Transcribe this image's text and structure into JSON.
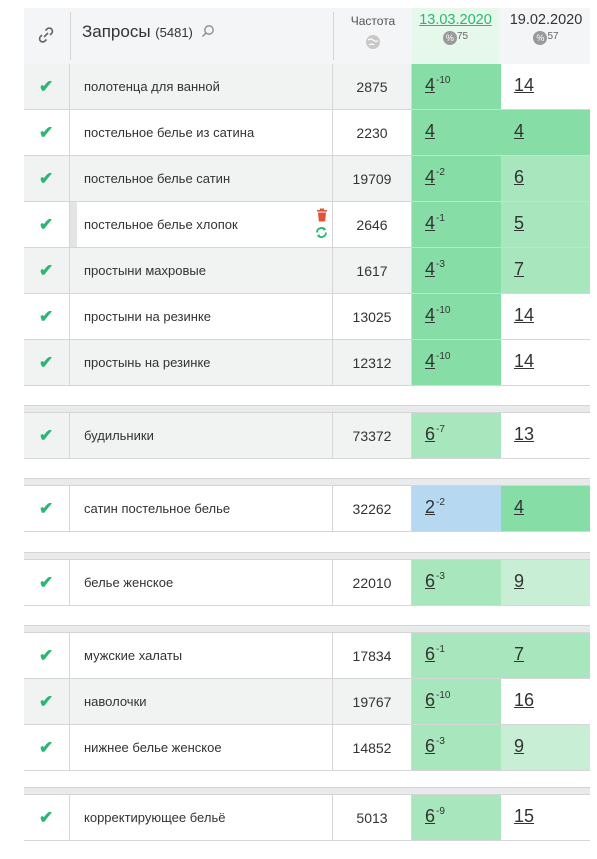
{
  "header": {
    "link_icon": "link-icon",
    "title": "Запросы",
    "count": "(5481)",
    "search_icon": "search-icon",
    "frequency_label": "Частота",
    "globe_icon": "globe-icon",
    "dates": [
      {
        "label": "13.03.2020",
        "percent": "75"
      },
      {
        "label": "19.02.2020",
        "percent": "57"
      }
    ]
  },
  "colors": {
    "check": "#2bb673",
    "pos_green": "#86dda6",
    "pos_light": "#a8e6bd",
    "pos_lighter": "#c8efd6",
    "pos_blue": "#b6d8f0",
    "delete": "#e0533b"
  },
  "groups": [
    {
      "rows": [
        {
          "query": "полотенца для ванной",
          "freq": "2875",
          "p1": "4",
          "d1": "-10",
          "p2": "14"
        },
        {
          "query": "постельное белье из сатина",
          "freq": "2230",
          "p1": "4",
          "d1": "",
          "p2": "4"
        },
        {
          "query": "постельное белье сатин",
          "freq": "19709",
          "p1": "4",
          "d1": "-2",
          "p2": "6"
        },
        {
          "query": "постельное белье хлопок",
          "freq": "2646",
          "p1": "4",
          "d1": "-1",
          "p2": "5"
        },
        {
          "query": "простыни махровые",
          "freq": "1617",
          "p1": "4",
          "d1": "-3",
          "p2": "7"
        },
        {
          "query": "простыни на резинке",
          "freq": "13025",
          "p1": "4",
          "d1": "-10",
          "p2": "14"
        },
        {
          "query": "простынь на резинке",
          "freq": "12312",
          "p1": "4",
          "d1": "-10",
          "p2": "14"
        }
      ]
    },
    {
      "rows": [
        {
          "query": "будильники",
          "freq": "73372",
          "p1": "6",
          "d1": "-7",
          "p2": "13"
        }
      ]
    },
    {
      "rows": [
        {
          "query": "сатин постельное белье",
          "freq": "32262",
          "p1": "2",
          "d1": "-2",
          "p2": "4"
        }
      ]
    },
    {
      "rows": [
        {
          "query": "белье женское",
          "freq": "22010",
          "p1": "6",
          "d1": "-3",
          "p2": "9"
        }
      ]
    },
    {
      "rows": [
        {
          "query": "мужские халаты",
          "freq": "17834",
          "p1": "6",
          "d1": "-1",
          "p2": "7"
        },
        {
          "query": "наволочки",
          "freq": "19767",
          "p1": "6",
          "d1": "-10",
          "p2": "16"
        },
        {
          "query": "нижнее белье женское",
          "freq": "14852",
          "p1": "6",
          "d1": "-3",
          "p2": "9"
        }
      ]
    },
    {
      "rows": [
        {
          "query": "корректирующее бельё",
          "freq": "5013",
          "p1": "6",
          "d1": "-9",
          "p2": "15"
        }
      ]
    }
  ]
}
